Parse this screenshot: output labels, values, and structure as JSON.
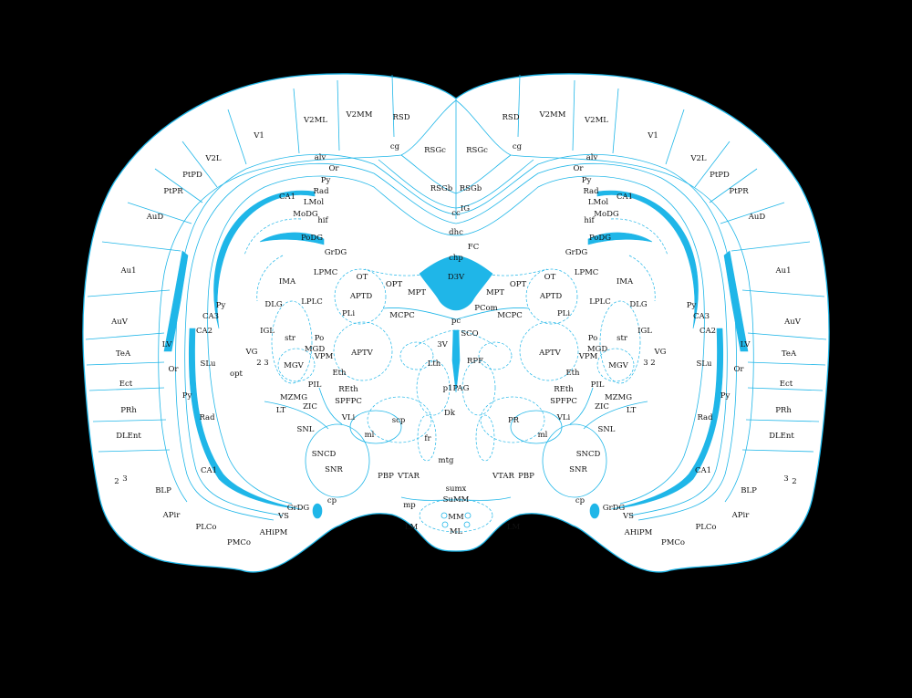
{
  "diagram": {
    "colors": {
      "background": "#000000",
      "tissue": "#ffffff",
      "line": "#1fb6e8",
      "ventricle_fill": "#1fb6e8",
      "text": "#111111"
    },
    "labels": [
      "V2ML",
      "V2MM",
      "RSD",
      "V1",
      "RSGc",
      "cg",
      "alv",
      "Or",
      "V2L",
      "PtPD",
      "Py",
      "Rad",
      "PtPR",
      "CA1",
      "LMol",
      "AuD",
      "MoDG",
      "hif",
      "RSGb",
      "cc",
      "IG",
      "dhc",
      "PoDG",
      "GrDG",
      "FC",
      "chp",
      "D3V",
      "Au1",
      "LPMC",
      "OT",
      "OPT",
      "IMA",
      "MPT",
      "APTD",
      "PLi",
      "LPLC",
      "DLG",
      "CA3",
      "PCom",
      "MCPC",
      "pc",
      "AuV",
      "IGL",
      "Po",
      "CA2",
      "SCO",
      "str",
      "MGD",
      "VPM",
      "3V",
      "TeA",
      "LV",
      "MGV",
      "APTV",
      "Lth",
      "RPF",
      "opt",
      "SLu",
      "Eth",
      "Ect",
      "PIL",
      "REth",
      "p1PAG",
      "PRh",
      "MZMG",
      "ZIC",
      "SPFPC",
      "LT",
      "VLi",
      "Dk",
      "scp",
      "PR",
      "SNL",
      "ml",
      "fr",
      "DLEnt",
      "SNCD",
      "mtg",
      "SNR",
      "PBP",
      "VTAR",
      "sumx",
      "BLP",
      "SuMM",
      "mp",
      "cp",
      "VS",
      "APir",
      "MM",
      "AHiPM",
      "LM",
      "PLCo",
      "ML",
      "PMCo",
      "2",
      "3",
      "VG"
    ]
  }
}
